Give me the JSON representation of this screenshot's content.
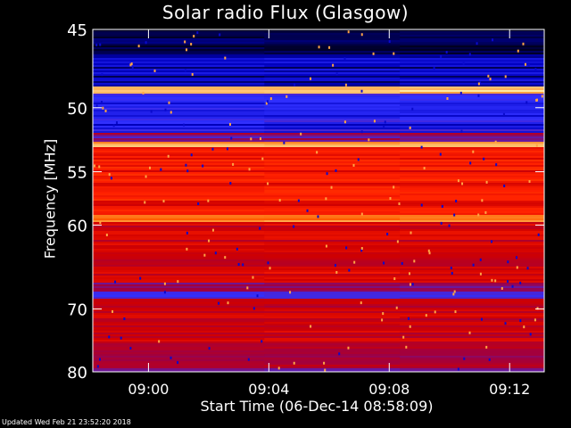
{
  "chart_data": {
    "type": "heatmap",
    "title": "Solar radio Flux (Glasgow)",
    "xlabel": "Start Time (06-Dec-14 08:58:09)",
    "ylabel": "Frequency [MHz]",
    "x_tick_labels": [
      "09:00",
      "09:04",
      "09:08",
      "09:12"
    ],
    "x_tick_minutes": [
      1.85,
      5.85,
      9.85,
      13.85
    ],
    "x_range_minutes_after_start": [
      0,
      15
    ],
    "y_ticks": [
      45,
      50,
      55,
      60,
      70,
      80
    ],
    "y_range": [
      45,
      80
    ],
    "y_scale": "reciprocal",
    "colormap": [
      "#000020",
      "#0000c0",
      "#3030ff",
      "#a00040",
      "#d00000",
      "#ff2000",
      "#ff6000",
      "#ffa040",
      "#ffffc0"
    ],
    "bands": [
      {
        "from": 45,
        "to": 46.5,
        "level": 0.0
      },
      {
        "from": 46.5,
        "to": 48.5,
        "level": 0.12
      },
      {
        "from": 48.5,
        "to": 49.0,
        "level": 0.95
      },
      {
        "from": 49.0,
        "to": 51.8,
        "level": 0.2
      },
      {
        "from": 51.8,
        "to": 52.5,
        "level": 0.35
      },
      {
        "from": 52.5,
        "to": 53.0,
        "level": 0.85
      },
      {
        "from": 53.0,
        "to": 59.0,
        "level": 0.58
      },
      {
        "from": 59.0,
        "to": 59.6,
        "level": 0.82
      },
      {
        "from": 59.6,
        "to": 66.5,
        "level": 0.5
      },
      {
        "from": 66.5,
        "to": 68.5,
        "level": 0.32
      },
      {
        "from": 68.5,
        "to": 76.0,
        "level": 0.48
      },
      {
        "from": 76.0,
        "to": 80,
        "level": 0.38
      }
    ],
    "grid": false
  },
  "footer": "Updated Wed Feb 21 23:52:20 2018"
}
